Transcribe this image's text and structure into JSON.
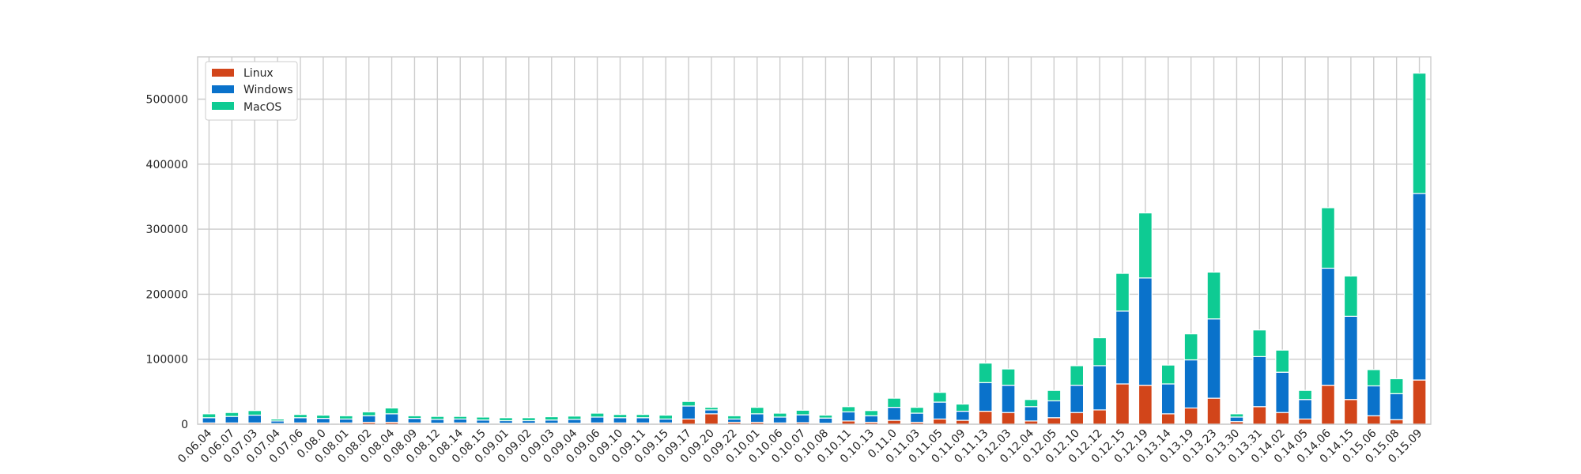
{
  "colors": {
    "Linux": "#d2451a",
    "Windows": "#0a72cb",
    "MacOS": "#0ecb93",
    "grid": "#cccccc",
    "axis": "#cccccc",
    "background": "#ffffff"
  },
  "chart_data": {
    "type": "bar",
    "stacked": true,
    "title": "",
    "xlabel": "",
    "ylabel": "",
    "ylim": [
      0,
      565000
    ],
    "grid": true,
    "legend": "top-left",
    "yticks": [
      0,
      100000,
      200000,
      300000,
      400000,
      500000
    ],
    "categories": [
      "0.06.04",
      "0.06.07",
      "0.07.03",
      "0.07.04",
      "0.07.06",
      "0.08.0",
      "0.08.01",
      "0.08.02",
      "0.08.04",
      "0.08.09",
      "0.08.12",
      "0.08.14",
      "0.08.15",
      "0.09.01",
      "0.09.02",
      "0.09.03",
      "0.09.04",
      "0.09.06",
      "0.09.10",
      "0.09.11",
      "0.09.15",
      "0.09.17",
      "0.09.20",
      "0.09.22",
      "0.10.01",
      "0.10.06",
      "0.10.07",
      "0.10.08",
      "0.10.11",
      "0.10.13",
      "0.11.0",
      "0.11.03",
      "0.11.05",
      "0.11.09",
      "0.11.13",
      "0.12.03",
      "0.12.04",
      "0.12.05",
      "0.12.10",
      "0.12.12",
      "0.12.15",
      "0.12.19",
      "0.13.14",
      "0.13.19",
      "0.13.23",
      "0.13.30",
      "0.13.31",
      "0.14.02",
      "0.14.05",
      "0.14.06",
      "0.14.15",
      "0.15.06",
      "0.15.08",
      "0.15.09"
    ],
    "series": [
      {
        "name": "Linux",
        "values": [
          2000,
          2000,
          2000,
          1000,
          2000,
          2000,
          2000,
          3000,
          3000,
          2000,
          1500,
          2000,
          1500,
          1500,
          1500,
          1500,
          1500,
          2000,
          2000,
          2000,
          2000,
          8000,
          16000,
          3000,
          3000,
          2000,
          2500,
          1500,
          5000,
          3000,
          6000,
          3000,
          8000,
          6000,
          20000,
          18000,
          5000,
          10000,
          18000,
          22000,
          62000,
          60000,
          16000,
          25000,
          40000,
          4000,
          27000,
          18000,
          8000,
          60000,
          38000,
          13000,
          7000,
          68000
        ]
      },
      {
        "name": "Windows",
        "values": [
          8000,
          10000,
          12000,
          4000,
          8000,
          7000,
          6000,
          10000,
          13000,
          7000,
          6000,
          6000,
          5000,
          4000,
          4000,
          5000,
          6000,
          9000,
          8000,
          8000,
          6000,
          20000,
          6000,
          5000,
          13000,
          9000,
          12000,
          8000,
          14000,
          10000,
          20000,
          14000,
          26000,
          14000,
          44000,
          42000,
          22000,
          26000,
          42000,
          68000,
          112000,
          165000,
          46000,
          74000,
          122000,
          7000,
          77000,
          62000,
          30000,
          180000,
          128000,
          46000,
          40000,
          287000
        ]
      },
      {
        "name": "MacOS",
        "values": [
          6000,
          6000,
          7000,
          3000,
          5000,
          5000,
          5000,
          6000,
          9000,
          4000,
          4500,
          4000,
          4500,
          4500,
          4500,
          5000,
          5000,
          6000,
          5000,
          5000,
          6000,
          7000,
          4000,
          5000,
          10000,
          6000,
          7000,
          4500,
          8000,
          8000,
          14000,
          9000,
          15000,
          11000,
          30000,
          25000,
          11000,
          16000,
          30000,
          43000,
          58000,
          100000,
          29000,
          40000,
          72000,
          5000,
          41000,
          34000,
          14000,
          93000,
          62000,
          25000,
          23000,
          185000
        ]
      }
    ]
  }
}
